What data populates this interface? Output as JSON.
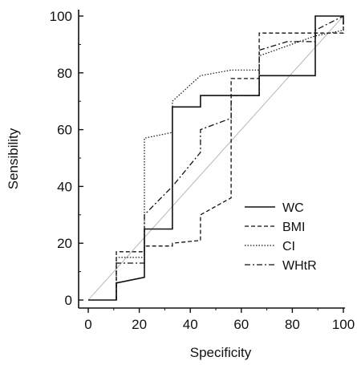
{
  "chart_data": {
    "type": "line",
    "xlabel": "Specificity",
    "ylabel": "Sensibility",
    "xlim": [
      0,
      100
    ],
    "ylim": [
      0,
      100
    ],
    "xticks": [
      "0",
      "20",
      "40",
      "60",
      "80",
      "100"
    ],
    "yticks": [
      "0",
      "20",
      "40",
      "60",
      "80",
      "100"
    ],
    "reference_line": {
      "x": [
        0,
        100
      ],
      "y": [
        0,
        100
      ],
      "color": "#b0b0b0"
    },
    "legend_position": "lower-right",
    "series": [
      {
        "name": "WC",
        "style": "solid",
        "color": "#111111",
        "x": [
          0,
          11,
          11,
          22,
          22,
          33,
          33,
          44,
          44,
          67,
          67,
          89,
          89,
          100,
          100
        ],
        "y": [
          0,
          0,
          6,
          8,
          25,
          25,
          68,
          68,
          72,
          72,
          79,
          79,
          100,
          100,
          97
        ]
      },
      {
        "name": "BMI",
        "style": "dashed",
        "color": "#111111",
        "x": [
          11,
          11,
          22,
          22,
          33,
          33,
          44,
          44,
          56,
          56,
          67,
          67,
          100,
          100
        ],
        "y": [
          0,
          17,
          17,
          19,
          19,
          20,
          21,
          30,
          36,
          78,
          78,
          94,
          94,
          98
        ]
      },
      {
        "name": "CI",
        "style": "dotted",
        "color": "#111111",
        "x": [
          11,
          11,
          22,
          22,
          33,
          33,
          44,
          56,
          67,
          67,
          89,
          100,
          100
        ],
        "y": [
          0,
          15,
          15,
          57,
          59,
          70,
          79,
          81,
          81,
          86,
          93,
          95,
          96
        ]
      },
      {
        "name": "WHtR",
        "style": "dashdot",
        "color": "#111111",
        "x": [
          11,
          11,
          22,
          22,
          33,
          44,
          44,
          56,
          56,
          67,
          67,
          78,
          89,
          89,
          100
        ],
        "y": [
          0,
          13,
          13,
          30,
          40,
          52,
          60,
          64,
          72,
          72,
          88,
          91,
          91,
          95,
          100
        ]
      }
    ]
  }
}
